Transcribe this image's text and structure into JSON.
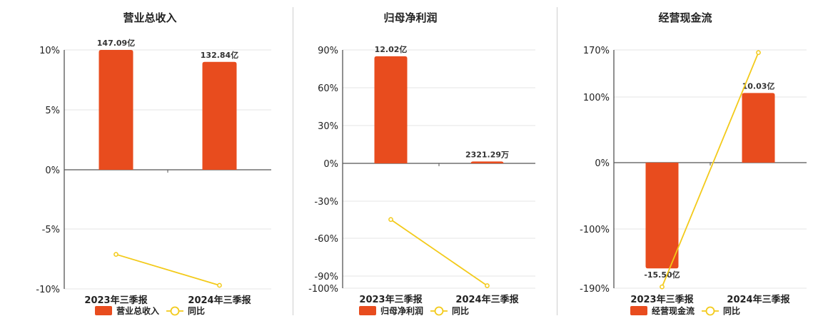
{
  "colors": {
    "bar": "#E84C1E",
    "line": "#F3CA1A",
    "grid": "#e6e6e6",
    "axis": "#222222"
  },
  "chart_data": [
    {
      "type": "bar",
      "title": "营业总收入",
      "categories": [
        "2023年三季报",
        "2024年三季报"
      ],
      "series": [
        {
          "name": "营业总收入",
          "values": [
            10.0,
            9.0
          ],
          "labels": [
            "147.09亿",
            "132.84亿"
          ]
        },
        {
          "name": "同比",
          "type": "line",
          "values": [
            -7.1,
            -9.7
          ]
        }
      ],
      "yticks": [
        "10%",
        "5%",
        "0%",
        "-5%",
        "-10%"
      ],
      "ylim": [
        -10,
        10
      ],
      "legend": "bottom"
    },
    {
      "type": "bar",
      "title": "归母净利润",
      "categories": [
        "2023年三季报",
        "2024年三季报"
      ],
      "series": [
        {
          "name": "归母净利润",
          "values": [
            85,
            1.5
          ],
          "labels": [
            "12.02亿",
            "2321.29万"
          ]
        },
        {
          "name": "同比",
          "type": "line",
          "values": [
            -45,
            -98
          ]
        }
      ],
      "yticks": [
        "90%",
        "60%",
        "30%",
        "0%",
        "-30%",
        "-60%",
        "-90%",
        "-100%"
      ],
      "ylim": [
        -100,
        90
      ],
      "legend": "bottom"
    },
    {
      "type": "bar",
      "title": "经营现金流",
      "categories": [
        "2023年三季报",
        "2024年三季报"
      ],
      "series": [
        {
          "name": "经营现金流",
          "values": [
            -160,
            105
          ],
          "labels": [
            "-15.50亿",
            "10.03亿"
          ]
        },
        {
          "name": "同比",
          "type": "line",
          "values": [
            -188,
            166
          ]
        }
      ],
      "yticks": [
        "170%",
        "100%",
        "0%",
        "-100%",
        "-190%"
      ],
      "ylim": [
        -190,
        170
      ],
      "legend": "bottom"
    }
  ]
}
